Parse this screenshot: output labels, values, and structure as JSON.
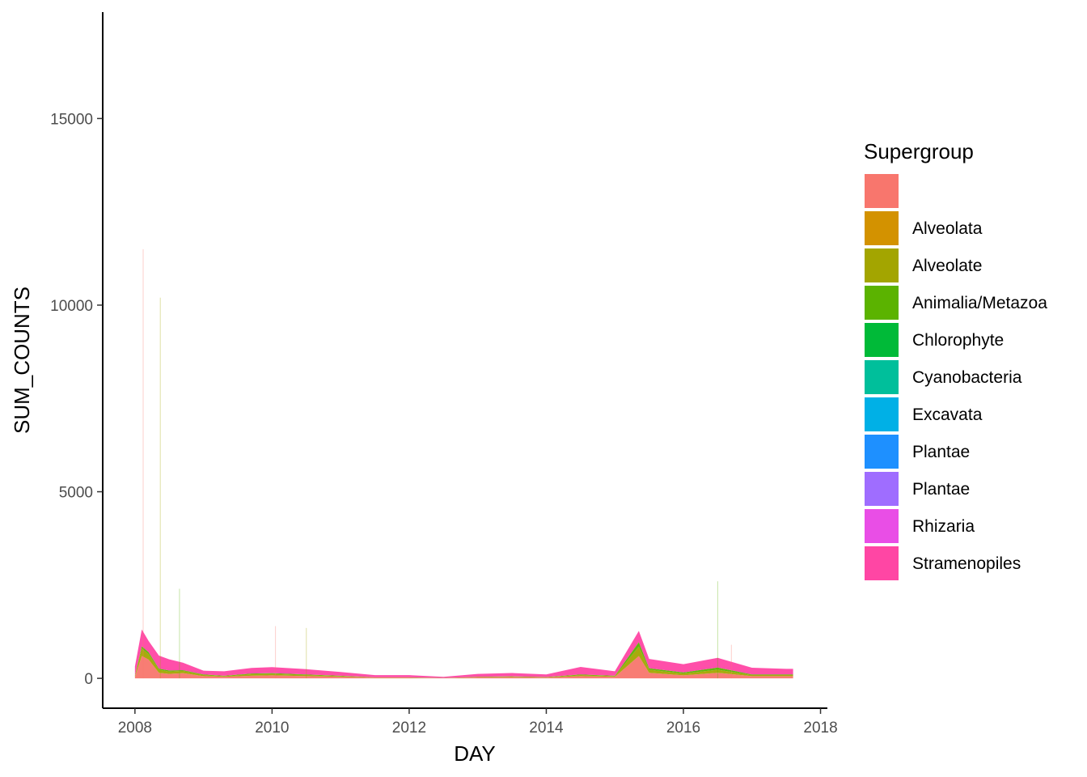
{
  "chart_data": {
    "type": "area",
    "stacked": true,
    "xlabel": "DAY",
    "ylabel": "SUM_COUNTS",
    "xlim": [
      2007.53,
      2018.1
    ],
    "ylim": [
      -800,
      17850
    ],
    "x_ticks": [
      {
        "value": 2008,
        "label": "2008"
      },
      {
        "value": 2010,
        "label": "2010"
      },
      {
        "value": 2012,
        "label": "2012"
      },
      {
        "value": 2014,
        "label": "2014"
      },
      {
        "value": 2016,
        "label": "2016"
      },
      {
        "value": 2018,
        "label": "2018"
      }
    ],
    "y_ticks": [
      {
        "value": 0,
        "label": "0"
      },
      {
        "value": 5000,
        "label": "5000"
      },
      {
        "value": 10000,
        "label": "10000"
      },
      {
        "value": 15000,
        "label": "15000"
      }
    ],
    "grid": false,
    "legend": {
      "title": "Supergroup",
      "position": "right",
      "entries": [
        {
          "label": "",
          "color": "#F8766D"
        },
        {
          "label": "Alveolata",
          "color": "#D39200"
        },
        {
          "label": "Alveolate",
          "color": "#A3A500"
        },
        {
          "label": "Animalia/Metazoa",
          "color": "#5BB300"
        },
        {
          "label": "Chlorophyte",
          "color": "#00BA38"
        },
        {
          "label": "Cyanobacteria",
          "color": "#00BF9B"
        },
        {
          "label": "Excavata",
          "color": "#00B0E6"
        },
        {
          "label": "Plantae",
          "color": "#1E90FF"
        },
        {
          "label": "Plantae",
          "color": "#9F6DFF"
        },
        {
          "label": "Rhizaria",
          "color": "#E94EE6"
        },
        {
          "label": "Stramenopiles",
          "color": "#FF46A4"
        }
      ]
    },
    "series": [
      {
        "name": "",
        "color": "#F8766D",
        "x": [
          2008.0,
          2008.1,
          2008.2,
          2008.35,
          2008.5,
          2008.7,
          2009.0,
          2009.3,
          2009.7,
          2010.0,
          2010.5,
          2011.0,
          2011.5,
          2012.0,
          2012.5,
          2013.0,
          2013.5,
          2014.0,
          2014.5,
          2015.0,
          2015.35,
          2015.5,
          2016.0,
          2016.5,
          2017.0,
          2017.5,
          2017.6
        ],
        "values": [
          40,
          600,
          500,
          150,
          120,
          140,
          60,
          40,
          70,
          80,
          60,
          40,
          15,
          15,
          5,
          25,
          30,
          20,
          60,
          40,
          600,
          150,
          80,
          150,
          60,
          60,
          60
        ]
      },
      {
        "name": "Alveolate",
        "color": "#A3A500",
        "x": [
          2008.0,
          2008.1,
          2008.2,
          2008.35,
          2008.5,
          2008.7,
          2009.0,
          2009.3,
          2009.7,
          2010.0,
          2010.5,
          2011.0,
          2011.5,
          2012.0,
          2012.5,
          2013.0,
          2013.5,
          2014.0,
          2014.5,
          2015.0,
          2015.35,
          2015.5,
          2016.0,
          2016.5,
          2017.0,
          2017.5,
          2017.6
        ],
        "values": [
          20,
          200,
          150,
          80,
          60,
          60,
          30,
          20,
          40,
          40,
          30,
          20,
          8,
          8,
          3,
          10,
          15,
          10,
          30,
          20,
          250,
          80,
          50,
          80,
          30,
          30,
          30
        ]
      },
      {
        "name": "Animalia/Metazoa",
        "color": "#5BB300",
        "x": [
          2008.0,
          2008.1,
          2008.2,
          2008.35,
          2008.5,
          2008.7,
          2009.0,
          2009.3,
          2009.7,
          2010.0,
          2010.5,
          2011.0,
          2011.5,
          2012.0,
          2012.5,
          2013.0,
          2013.5,
          2014.0,
          2014.5,
          2015.0,
          2015.35,
          2015.5,
          2016.0,
          2016.5,
          2017.0,
          2017.5,
          2017.6
        ],
        "values": [
          10,
          60,
          50,
          30,
          30,
          20,
          15,
          10,
          20,
          20,
          15,
          10,
          4,
          4,
          2,
          5,
          8,
          5,
          15,
          10,
          120,
          40,
          30,
          60,
          15,
          15,
          15
        ]
      },
      {
        "name": "Stramenopiles",
        "color": "#FF46A4",
        "x": [
          2008.0,
          2008.1,
          2008.2,
          2008.35,
          2008.5,
          2008.7,
          2009.0,
          2009.3,
          2009.7,
          2010.0,
          2010.5,
          2011.0,
          2011.5,
          2012.0,
          2012.5,
          2013.0,
          2013.5,
          2014.0,
          2014.5,
          2015.0,
          2015.35,
          2015.5,
          2016.0,
          2016.5,
          2017.0,
          2017.5,
          2017.6
        ],
        "values": [
          250,
          450,
          300,
          350,
          300,
          200,
          100,
          120,
          150,
          160,
          140,
          100,
          60,
          60,
          30,
          80,
          90,
          70,
          200,
          120,
          300,
          250,
          220,
          260,
          180,
          150,
          150
        ]
      }
    ],
    "spikes": [
      {
        "x": 2008.12,
        "value": 11500,
        "color": "#F8766D"
      },
      {
        "x": 2008.37,
        "value": 10200,
        "color": "#A3A500"
      },
      {
        "x": 2008.65,
        "value": 2400,
        "color": "#5BB300"
      },
      {
        "x": 2010.05,
        "value": 1400,
        "color": "#F8766D"
      },
      {
        "x": 2010.5,
        "value": 1350,
        "color": "#A3A500"
      },
      {
        "x": 2016.5,
        "value": 2600,
        "color": "#5BB300"
      },
      {
        "x": 2016.7,
        "value": 900,
        "color": "#F8766D"
      }
    ]
  }
}
